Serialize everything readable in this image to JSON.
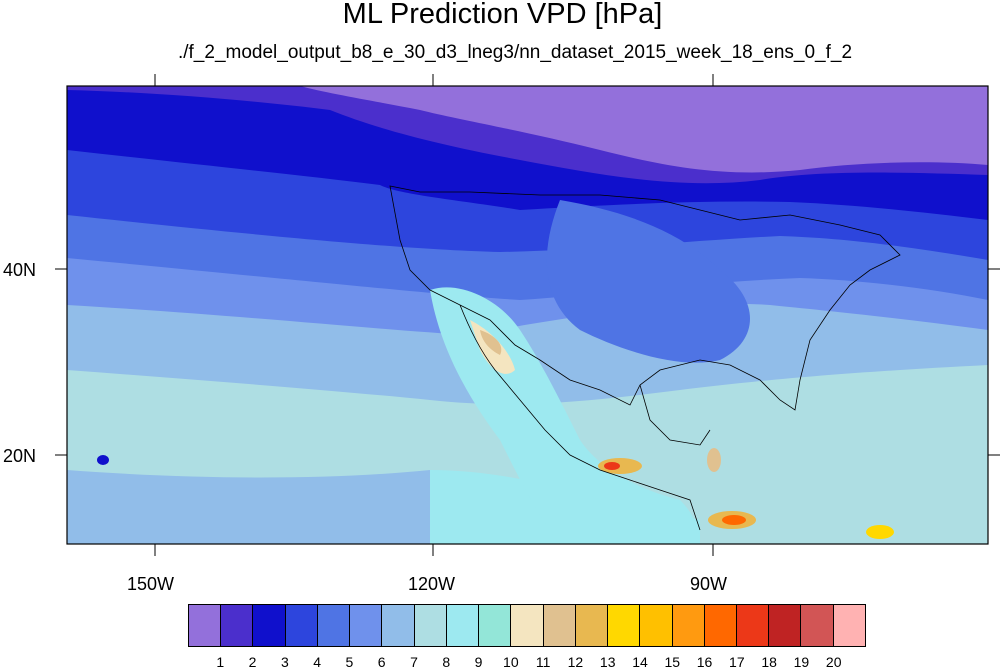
{
  "title": "ML Prediction VPD [hPa]",
  "subtitle": "./f_2_model_output_b8_e_30_d3_lneg3/nn_dataset_2015_week_18_ens_0_f_2",
  "map": {
    "lon_range": [
      -160,
      -62
    ],
    "lat_range": [
      10,
      60
    ],
    "lon_labels": [
      "150W",
      "120W",
      "90W"
    ],
    "lat_labels": [
      "40N",
      "20N"
    ]
  },
  "colorbar": {
    "labels": [
      "1",
      "2",
      "3",
      "4",
      "5",
      "6",
      "7",
      "8",
      "9",
      "10",
      "11",
      "12",
      "13",
      "14",
      "15",
      "16",
      "17",
      "18",
      "19",
      "20"
    ],
    "colors": [
      "#9370db",
      "#4b2fcc",
      "#1010cc",
      "#2d45dd",
      "#4f74e4",
      "#6f91ec",
      "#91bde9",
      "#aedee3",
      "#9de9f0",
      "#93e6d8",
      "#f4e5c0",
      "#e0c190",
      "#e8b850",
      "#ffd800",
      "#ffc000",
      "#ff9a10",
      "#ff6800",
      "#ec3818",
      "#bf2323",
      "#d25555",
      "#ffb2b2"
    ]
  }
}
